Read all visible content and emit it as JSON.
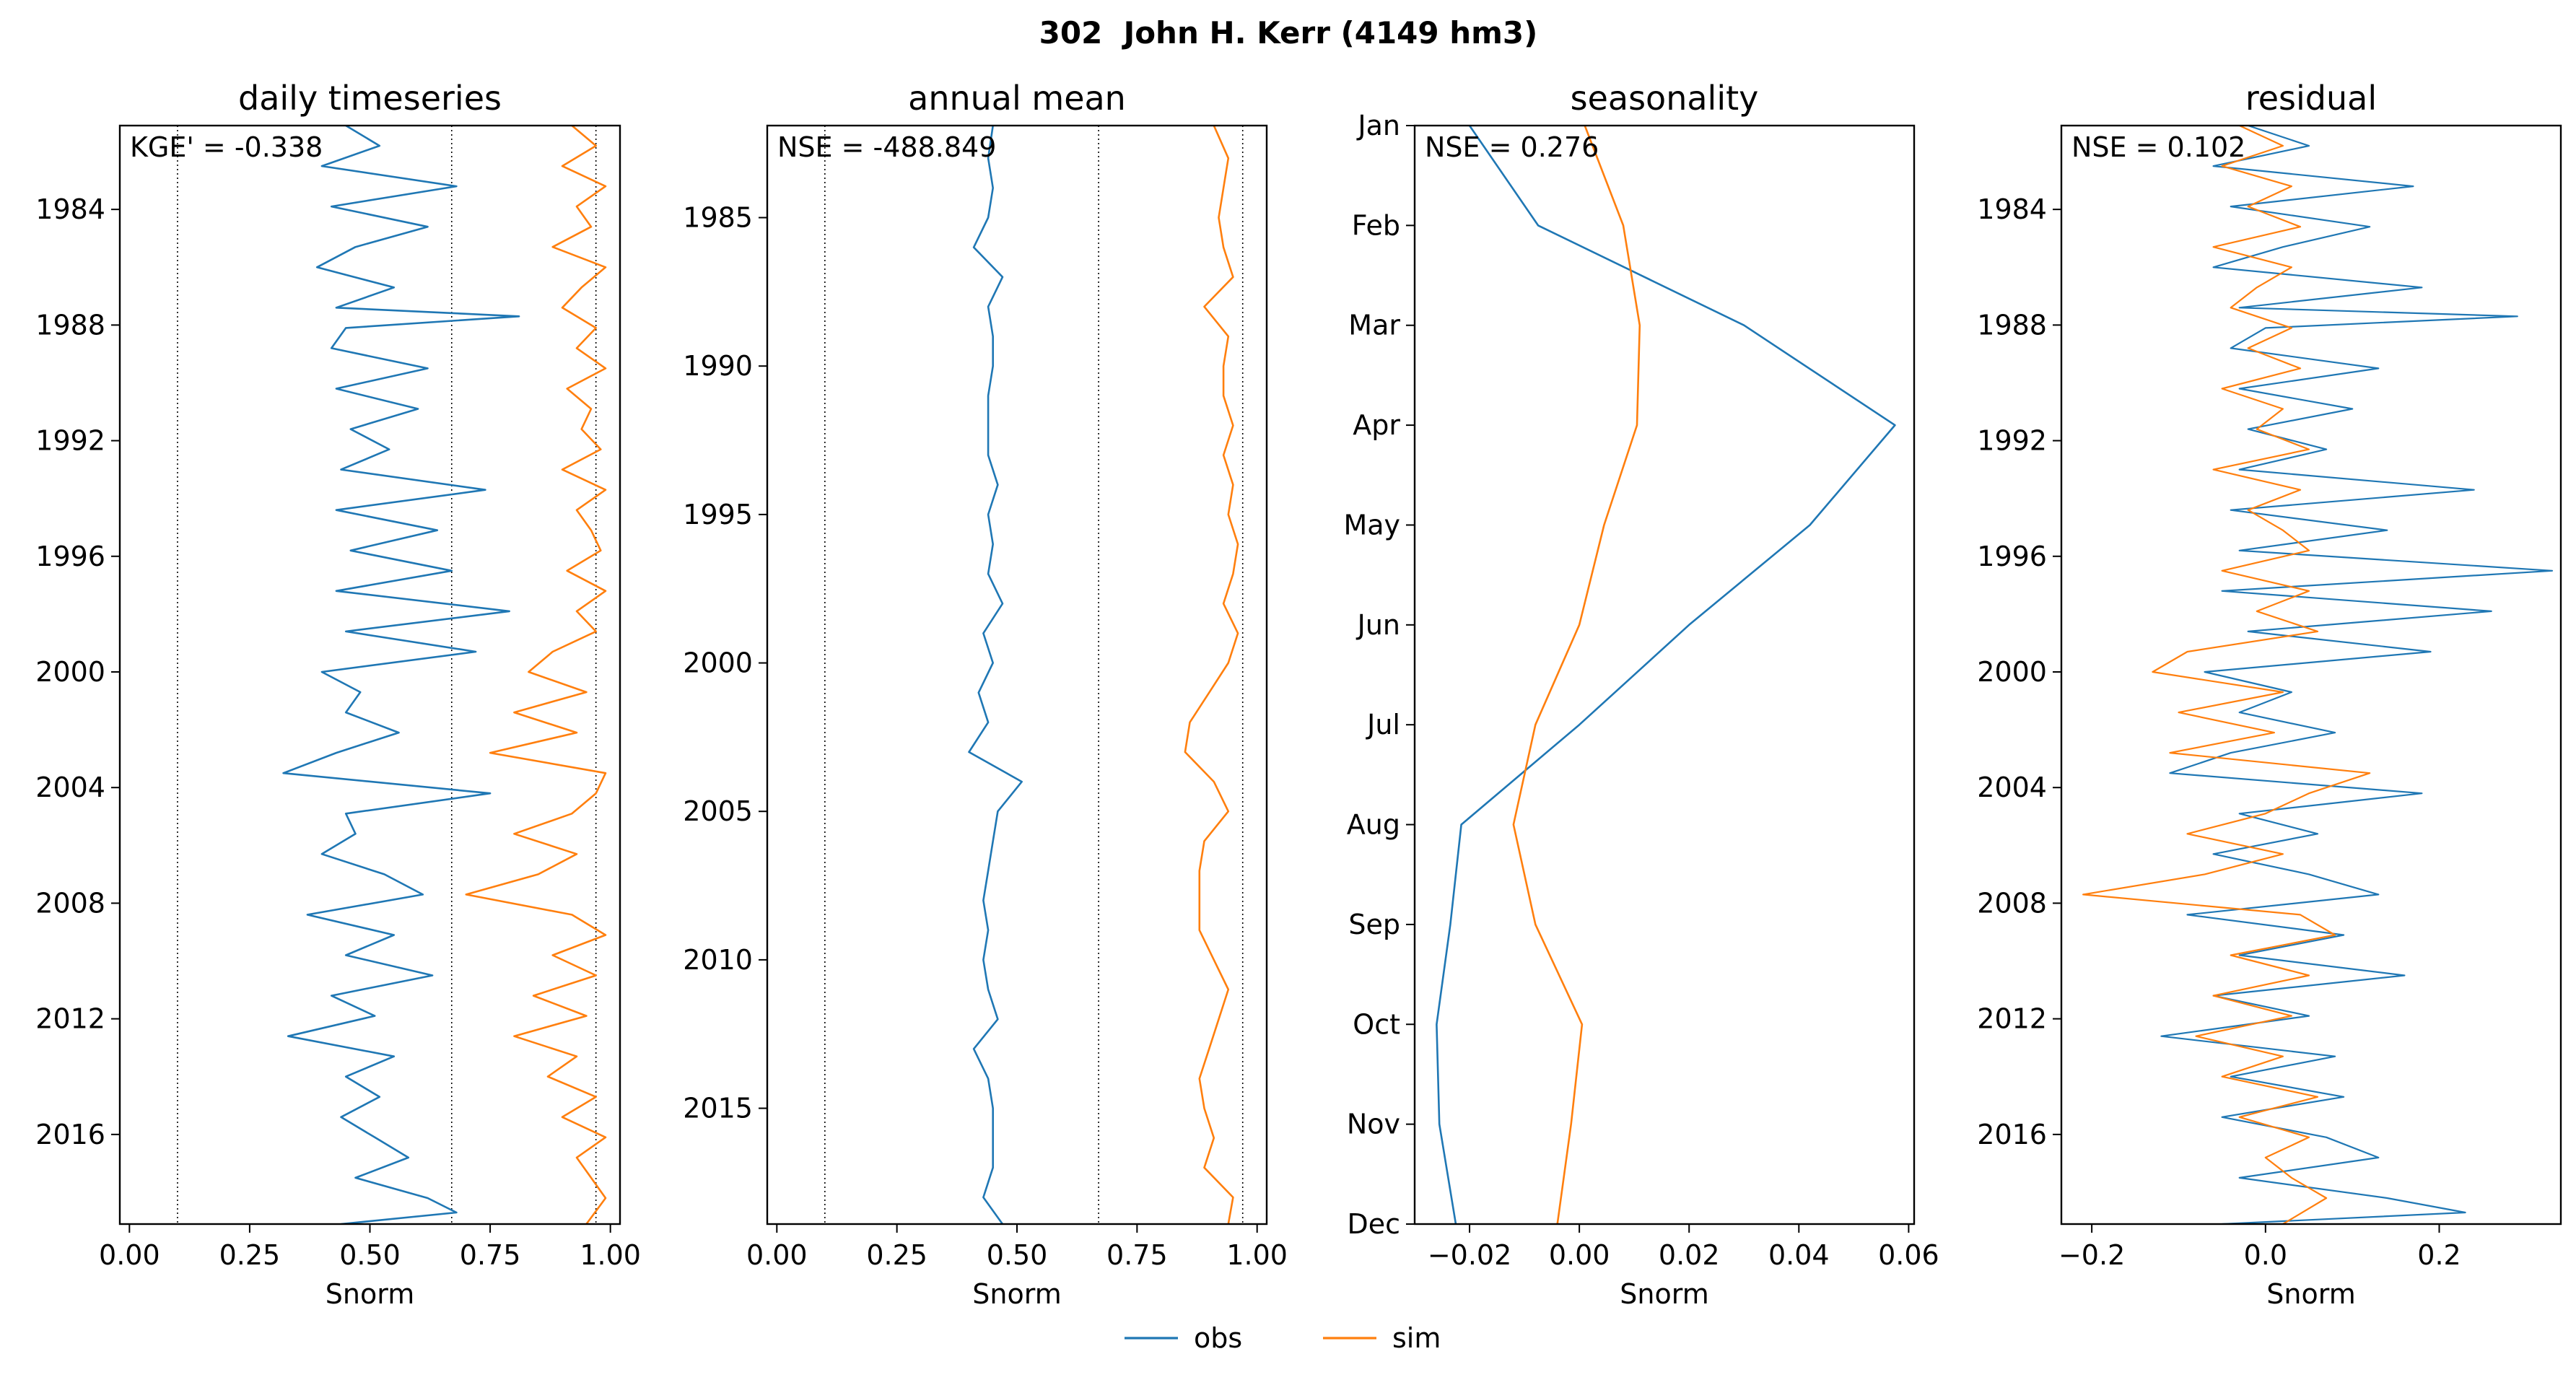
{
  "figure": {
    "suptitle": "302  John H. Kerr (4149 hm3)",
    "legend": {
      "position": "bottom-center",
      "entries": [
        {
          "label": "obs",
          "color": "#1f77b4"
        },
        {
          "label": "sim",
          "color": "#ff7f0e"
        }
      ]
    }
  },
  "chart_data": [
    {
      "type": "line",
      "title": "daily timeseries",
      "xlabel": "Snorm",
      "ylabel": "",
      "annotation": "KGE' = -0.338",
      "xlim": [
        -0.02,
        1.02
      ],
      "ylim": [
        2019.1,
        1981.1
      ],
      "xticks": [
        "0.00",
        "0.25",
        "0.50",
        "0.75",
        "1.00"
      ],
      "xtick_values": [
        0,
        0.25,
        0.5,
        0.75,
        1.0
      ],
      "yticks": [
        "1984",
        "1988",
        "1992",
        "1996",
        "2000",
        "2004",
        "2008",
        "2012",
        "2016"
      ],
      "ytick_values": [
        1984,
        1988,
        1992,
        1996,
        2000,
        2004,
        2008,
        2012,
        2016
      ],
      "reference_lines_x": [
        0.1,
        0.67,
        0.97
      ],
      "series": [
        {
          "name": "obs",
          "color": "#1f77b4",
          "linewidth": 2.6,
          "y": [
            1981.1,
            1981.8,
            1982.5,
            1983.2,
            1983.9,
            1984.6,
            1985.3,
            1986.0,
            1986.7,
            1987.4,
            1987.7,
            1988.1,
            1988.8,
            1989.5,
            1990.2,
            1990.9,
            1991.6,
            1992.3,
            1993.0,
            1993.7,
            1994.4,
            1995.1,
            1995.8,
            1996.5,
            1997.2,
            1997.9,
            1998.6,
            1999.3,
            2000.0,
            2000.7,
            2001.4,
            2002.1,
            2002.8,
            2003.5,
            2004.2,
            2004.9,
            2005.6,
            2006.3,
            2007.0,
            2007.7,
            2008.4,
            2009.1,
            2009.8,
            2010.5,
            2011.2,
            2011.9,
            2012.6,
            2013.3,
            2014.0,
            2014.7,
            2015.4,
            2016.1,
            2016.8,
            2017.5,
            2018.2,
            2018.7,
            2019.1
          ],
          "x": [
            0.45,
            0.52,
            0.4,
            0.68,
            0.42,
            0.62,
            0.47,
            0.39,
            0.55,
            0.43,
            0.81,
            0.45,
            0.42,
            0.62,
            0.43,
            0.6,
            0.46,
            0.54,
            0.44,
            0.74,
            0.43,
            0.64,
            0.46,
            0.67,
            0.43,
            0.79,
            0.45,
            0.72,
            0.4,
            0.48,
            0.45,
            0.56,
            0.43,
            0.32,
            0.75,
            0.45,
            0.47,
            0.4,
            0.53,
            0.61,
            0.37,
            0.55,
            0.45,
            0.63,
            0.42,
            0.51,
            0.33,
            0.55,
            0.45,
            0.52,
            0.44,
            0.51,
            0.58,
            0.47,
            0.62,
            0.68,
            0.44
          ]
        },
        {
          "name": "sim",
          "color": "#ff7f0e",
          "linewidth": 2.6,
          "y": [
            1981.1,
            1981.8,
            1982.5,
            1983.2,
            1983.9,
            1984.6,
            1985.3,
            1986.0,
            1986.7,
            1987.4,
            1988.1,
            1988.8,
            1989.5,
            1990.2,
            1990.9,
            1991.6,
            1992.3,
            1993.0,
            1993.7,
            1994.4,
            1995.1,
            1995.8,
            1996.5,
            1997.2,
            1997.9,
            1998.6,
            1999.3,
            2000.0,
            2000.7,
            2001.4,
            2002.1,
            2002.8,
            2003.5,
            2004.2,
            2004.9,
            2005.6,
            2006.3,
            2007.0,
            2007.7,
            2008.4,
            2009.1,
            2009.8,
            2010.5,
            2011.2,
            2011.9,
            2012.6,
            2013.3,
            2014.0,
            2014.7,
            2015.4,
            2016.1,
            2016.8,
            2017.5,
            2018.2,
            2019.1
          ],
          "x": [
            0.92,
            0.97,
            0.9,
            0.99,
            0.93,
            0.96,
            0.88,
            0.99,
            0.94,
            0.9,
            0.97,
            0.93,
            0.99,
            0.91,
            0.96,
            0.94,
            0.98,
            0.9,
            0.99,
            0.93,
            0.96,
            0.98,
            0.91,
            0.99,
            0.93,
            0.97,
            0.88,
            0.83,
            0.95,
            0.8,
            0.93,
            0.75,
            0.99,
            0.97,
            0.92,
            0.8,
            0.93,
            0.85,
            0.7,
            0.92,
            0.99,
            0.88,
            0.97,
            0.84,
            0.95,
            0.8,
            0.93,
            0.87,
            0.97,
            0.9,
            0.99,
            0.93,
            0.96,
            0.99,
            0.95
          ]
        }
      ]
    },
    {
      "type": "line",
      "title": "annual mean",
      "xlabel": "Snorm",
      "ylabel": "",
      "annotation": "NSE = -488.849",
      "xlim": [
        -0.02,
        1.02
      ],
      "ylim": [
        2018.9,
        1981.9
      ],
      "xticks": [
        "0.00",
        "0.25",
        "0.50",
        "0.75",
        "1.00"
      ],
      "xtick_values": [
        0,
        0.25,
        0.5,
        0.75,
        1.0
      ],
      "yticks": [
        "1985",
        "1990",
        "1995",
        "2000",
        "2005",
        "2010",
        "2015"
      ],
      "ytick_values": [
        1985,
        1990,
        1995,
        2000,
        2005,
        2010,
        2015
      ],
      "reference_lines_x": [
        0.1,
        0.67,
        0.97
      ],
      "series": [
        {
          "name": "obs",
          "color": "#1f77b4",
          "linewidth": 2.6,
          "y": [
            1981.9,
            1983,
            1984,
            1985,
            1986,
            1987,
            1988,
            1989,
            1990,
            1991,
            1992,
            1993,
            1994,
            1995,
            1996,
            1997,
            1998,
            1999,
            2000,
            2001,
            2002,
            2003,
            2004,
            2005,
            2006,
            2007,
            2008,
            2009,
            2010,
            2011,
            2012,
            2013,
            2014,
            2015,
            2016,
            2017,
            2018,
            2018.9
          ],
          "x": [
            0.45,
            0.44,
            0.45,
            0.44,
            0.41,
            0.47,
            0.44,
            0.45,
            0.45,
            0.44,
            0.44,
            0.44,
            0.46,
            0.44,
            0.45,
            0.44,
            0.47,
            0.43,
            0.45,
            0.42,
            0.44,
            0.4,
            0.51,
            0.46,
            0.45,
            0.44,
            0.43,
            0.44,
            0.43,
            0.44,
            0.46,
            0.41,
            0.44,
            0.45,
            0.45,
            0.45,
            0.43,
            0.47
          ]
        },
        {
          "name": "sim",
          "color": "#ff7f0e",
          "linewidth": 2.6,
          "y": [
            1981.9,
            1983,
            1984,
            1985,
            1986,
            1987,
            1988,
            1989,
            1990,
            1991,
            1992,
            1993,
            1994,
            1995,
            1996,
            1997,
            1998,
            1999,
            2000,
            2001,
            2002,
            2003,
            2004,
            2005,
            2006,
            2007,
            2008,
            2009,
            2010,
            2011,
            2012,
            2013,
            2014,
            2015,
            2016,
            2017,
            2018,
            2018.9
          ],
          "x": [
            0.91,
            0.94,
            0.93,
            0.92,
            0.93,
            0.95,
            0.89,
            0.94,
            0.93,
            0.93,
            0.95,
            0.93,
            0.95,
            0.94,
            0.96,
            0.95,
            0.93,
            0.96,
            0.94,
            0.9,
            0.86,
            0.85,
            0.91,
            0.94,
            0.89,
            0.88,
            0.88,
            0.88,
            0.91,
            0.94,
            0.92,
            0.9,
            0.88,
            0.89,
            0.91,
            0.89,
            0.95,
            0.94
          ]
        }
      ]
    },
    {
      "type": "line",
      "title": "seasonality",
      "xlabel": "Snorm",
      "ylabel": "",
      "annotation": "NSE = 0.276",
      "xlim": [
        -0.03,
        0.061
      ],
      "ylim": [
        12,
        1
      ],
      "xticks": [
        "−0.02",
        "0.00",
        "0.02",
        "0.04",
        "0.06"
      ],
      "xtick_values": [
        -0.02,
        0,
        0.02,
        0.04,
        0.06
      ],
      "yticks": [
        "Jan",
        "Feb",
        "Mar",
        "Apr",
        "May",
        "Jun",
        "Jul",
        "Aug",
        "Sep",
        "Oct",
        "Nov",
        "Dec"
      ],
      "ytick_values": [
        1,
        2,
        3,
        4,
        5,
        6,
        7,
        8,
        9,
        10,
        11,
        12
      ],
      "series": [
        {
          "name": "obs",
          "color": "#1f77b4",
          "linewidth": 2.6,
          "y": [
            1,
            2,
            3,
            4,
            5,
            6,
            7,
            8,
            9,
            10,
            11,
            12
          ],
          "x": [
            -0.02,
            -0.0075,
            0.03,
            0.0575,
            0.042,
            0.02,
            0.0,
            -0.0215,
            -0.0235,
            -0.026,
            -0.0255,
            -0.0225
          ]
        },
        {
          "name": "sim",
          "color": "#ff7f0e",
          "linewidth": 2.6,
          "y": [
            1,
            2,
            3,
            4,
            5,
            6,
            7,
            8,
            9,
            10,
            11,
            12
          ],
          "x": [
            0.001,
            0.008,
            0.011,
            0.0105,
            0.0045,
            0.0,
            -0.008,
            -0.012,
            -0.008,
            0.0005,
            -0.0015,
            -0.004
          ]
        }
      ]
    },
    {
      "type": "line",
      "title": "residual",
      "xlabel": "Snorm",
      "ylabel": "",
      "annotation": "NSE = 0.102",
      "xlim": [
        -0.235,
        0.34
      ],
      "ylim": [
        2019.1,
        1981.1
      ],
      "xticks": [
        "−0.2",
        "0.0",
        "0.2"
      ],
      "xtick_values": [
        -0.2,
        0,
        0.2
      ],
      "yticks": [
        "1984",
        "1988",
        "1992",
        "1996",
        "2000",
        "2004",
        "2008",
        "2012",
        "2016"
      ],
      "ytick_values": [
        1984,
        1988,
        1992,
        1996,
        2000,
        2004,
        2008,
        2012,
        2016
      ],
      "series": [
        {
          "name": "obs",
          "color": "#1f77b4",
          "linewidth": 2.2,
          "y": [
            1981.1,
            1981.8,
            1982.5,
            1983.2,
            1983.9,
            1984.6,
            1985.3,
            1986.0,
            1986.7,
            1987.4,
            1987.7,
            1988.1,
            1988.8,
            1989.5,
            1990.2,
            1990.9,
            1991.6,
            1992.3,
            1993.0,
            1993.7,
            1994.4,
            1995.1,
            1995.8,
            1996.5,
            1997.2,
            1997.9,
            1998.6,
            1999.3,
            2000.0,
            2000.7,
            2001.4,
            2002.1,
            2002.8,
            2003.5,
            2004.2,
            2004.9,
            2005.6,
            2006.3,
            2007.0,
            2007.7,
            2008.4,
            2009.1,
            2009.8,
            2010.5,
            2011.2,
            2011.9,
            2012.6,
            2013.3,
            2014.0,
            2014.7,
            2015.4,
            2016.1,
            2016.8,
            2017.5,
            2018.2,
            2018.7,
            2019.1
          ],
          "x": [
            -0.02,
            0.05,
            -0.06,
            0.17,
            -0.04,
            0.12,
            0.02,
            -0.06,
            0.18,
            -0.03,
            0.29,
            0.0,
            -0.04,
            0.13,
            -0.03,
            0.1,
            -0.02,
            0.07,
            -0.03,
            0.24,
            -0.04,
            0.14,
            -0.03,
            0.33,
            -0.05,
            0.26,
            -0.02,
            0.19,
            -0.07,
            0.03,
            -0.03,
            0.08,
            -0.04,
            -0.11,
            0.18,
            -0.03,
            0.06,
            -0.06,
            0.05,
            0.13,
            -0.09,
            0.09,
            -0.03,
            0.16,
            -0.06,
            0.05,
            -0.12,
            0.08,
            -0.04,
            0.09,
            -0.05,
            0.07,
            0.13,
            -0.03,
            0.14,
            0.23,
            -0.05
          ]
        },
        {
          "name": "sim",
          "color": "#ff7f0e",
          "linewidth": 2.2,
          "y": [
            1981.1,
            1981.8,
            1982.5,
            1983.2,
            1983.9,
            1984.6,
            1985.3,
            1986.0,
            1986.7,
            1987.4,
            1988.1,
            1988.8,
            1989.5,
            1990.2,
            1990.9,
            1991.6,
            1992.3,
            1993.0,
            1993.7,
            1994.4,
            1995.1,
            1995.8,
            1996.5,
            1997.2,
            1997.9,
            1998.6,
            1999.3,
            2000.0,
            2000.7,
            2001.4,
            2002.1,
            2002.8,
            2003.5,
            2004.2,
            2004.9,
            2005.6,
            2006.3,
            2007.0,
            2007.7,
            2008.4,
            2009.1,
            2009.8,
            2010.5,
            2011.2,
            2011.9,
            2012.6,
            2013.3,
            2014.0,
            2014.7,
            2015.4,
            2016.1,
            2016.8,
            2017.5,
            2018.2,
            2019.1
          ],
          "x": [
            -0.03,
            0.02,
            -0.05,
            0.03,
            -0.02,
            0.04,
            -0.06,
            0.03,
            -0.01,
            -0.04,
            0.03,
            -0.02,
            0.04,
            -0.05,
            0.02,
            -0.01,
            0.05,
            -0.06,
            0.04,
            -0.02,
            0.02,
            0.05,
            -0.05,
            0.05,
            -0.01,
            0.06,
            -0.09,
            -0.13,
            0.02,
            -0.1,
            0.01,
            -0.11,
            0.12,
            0.05,
            0.0,
            -0.09,
            0.02,
            -0.07,
            -0.21,
            0.04,
            0.08,
            -0.04,
            0.05,
            -0.06,
            0.03,
            -0.08,
            0.02,
            -0.05,
            0.06,
            -0.03,
            0.05,
            0.0,
            0.03,
            0.07,
            0.02
          ]
        }
      ]
    }
  ]
}
